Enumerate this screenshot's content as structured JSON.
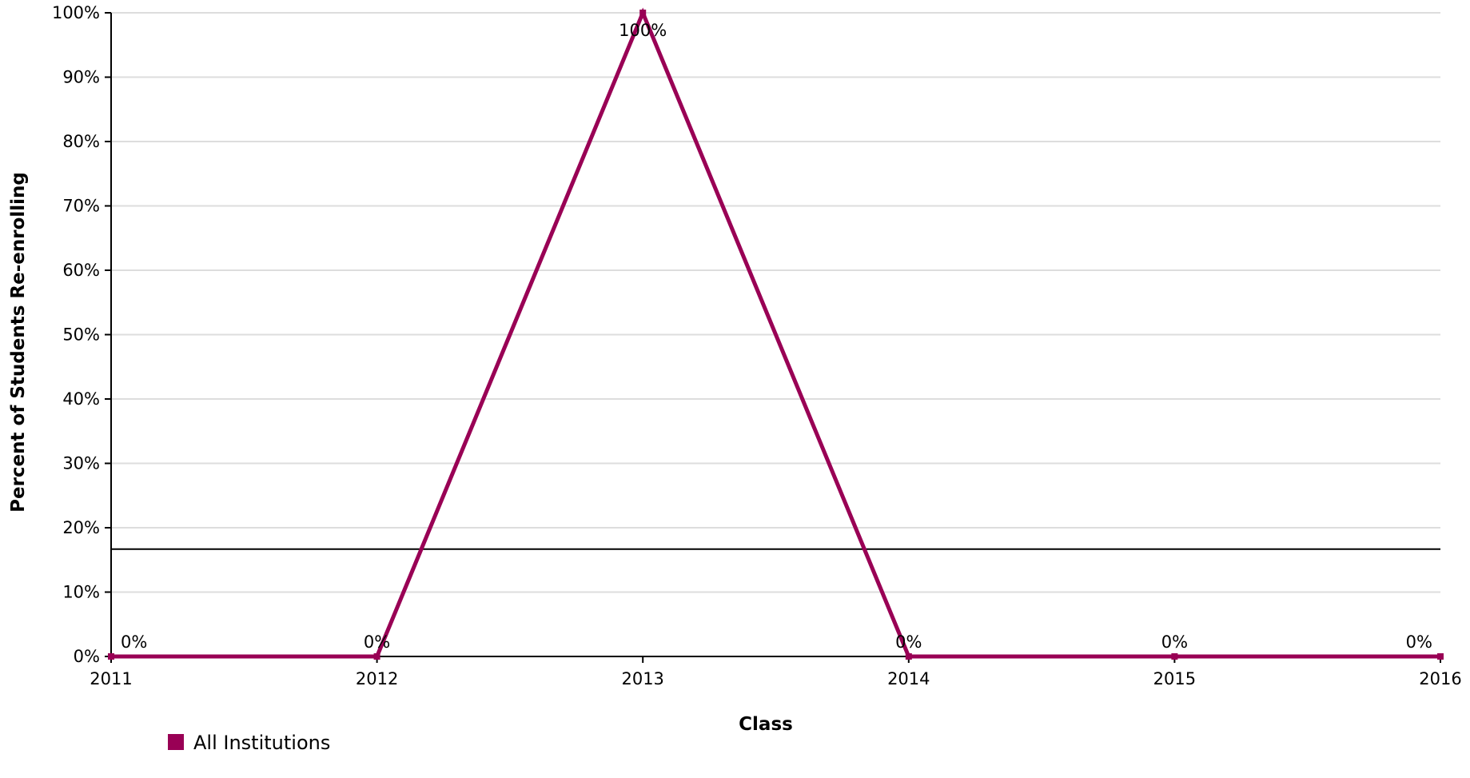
{
  "chart_data": {
    "type": "line",
    "title": "",
    "xlabel": "Class",
    "ylabel": "Percent of Students Re-enrolling",
    "x": [
      2011,
      2012,
      2013,
      2014,
      2015,
      2016
    ],
    "xlim": [
      2011,
      2016
    ],
    "ylim": [
      0,
      100
    ],
    "y_ticks": [
      0,
      10,
      20,
      30,
      40,
      50,
      60,
      70,
      80,
      90,
      100
    ],
    "y_tick_labels": [
      "0%",
      "10%",
      "20%",
      "30%",
      "40%",
      "50%",
      "60%",
      "70%",
      "80%",
      "90%",
      "100%"
    ],
    "x_tick_labels": [
      "2011",
      "2012",
      "2013",
      "2014",
      "2015",
      "2016"
    ],
    "series": [
      {
        "name": "All Institutions",
        "color": "#990055",
        "values": [
          0,
          0,
          100,
          0,
          0,
          0
        ],
        "data_labels": [
          "0%",
          "0%",
          "100%",
          "0%",
          "0%",
          "0%"
        ]
      }
    ],
    "reference_line": {
      "value": 16.67,
      "color": "#000000"
    },
    "grid": true,
    "grid_color": "#dddddd",
    "legend_position": "bottom-left"
  }
}
